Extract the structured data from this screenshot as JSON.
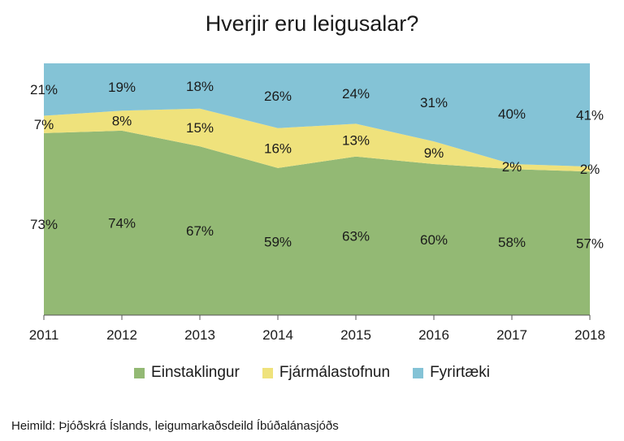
{
  "title": "Hverjir eru leigusalar?",
  "source": "Heimild: Þjóðskrá Íslands, leigumarkaðsdeild Íbúðalánasjóðs",
  "legend": [
    {
      "label": "Einstaklingur",
      "color": "#93b974"
    },
    {
      "label": "Fjármálastofnun",
      "color": "#efe27c"
    },
    {
      "label": "Fyrirtæki",
      "color": "#84c3d6"
    }
  ],
  "chart_data": {
    "type": "area",
    "stacked": true,
    "percent": true,
    "categories": [
      "2011",
      "2012",
      "2013",
      "2014",
      "2015",
      "2016",
      "2017",
      "2018"
    ],
    "ylim": [
      0,
      100
    ],
    "grid": false,
    "legend_position": "bottom",
    "series": [
      {
        "name": "Einstaklingur",
        "color": "#93b974",
        "values": [
          73,
          74,
          67,
          59,
          63,
          60,
          58,
          57
        ],
        "labels": [
          "73%",
          "74%",
          "67%",
          "59%",
          "63%",
          "60%",
          "58%",
          "57%"
        ]
      },
      {
        "name": "Fjármálastofnun",
        "color": "#efe27c",
        "values": [
          7,
          8,
          15,
          16,
          13,
          9,
          2,
          2
        ],
        "labels": [
          "7%",
          "8%",
          "15%",
          "16%",
          "13%",
          "9%",
          "2%",
          "2%"
        ]
      },
      {
        "name": "Fyrirtæki",
        "color": "#84c3d6",
        "values": [
          21,
          19,
          18,
          26,
          24,
          31,
          40,
          41
        ],
        "labels": [
          "21%",
          "19%",
          "18%",
          "26%",
          "24%",
          "31%",
          "40%",
          "41%"
        ]
      }
    ]
  }
}
